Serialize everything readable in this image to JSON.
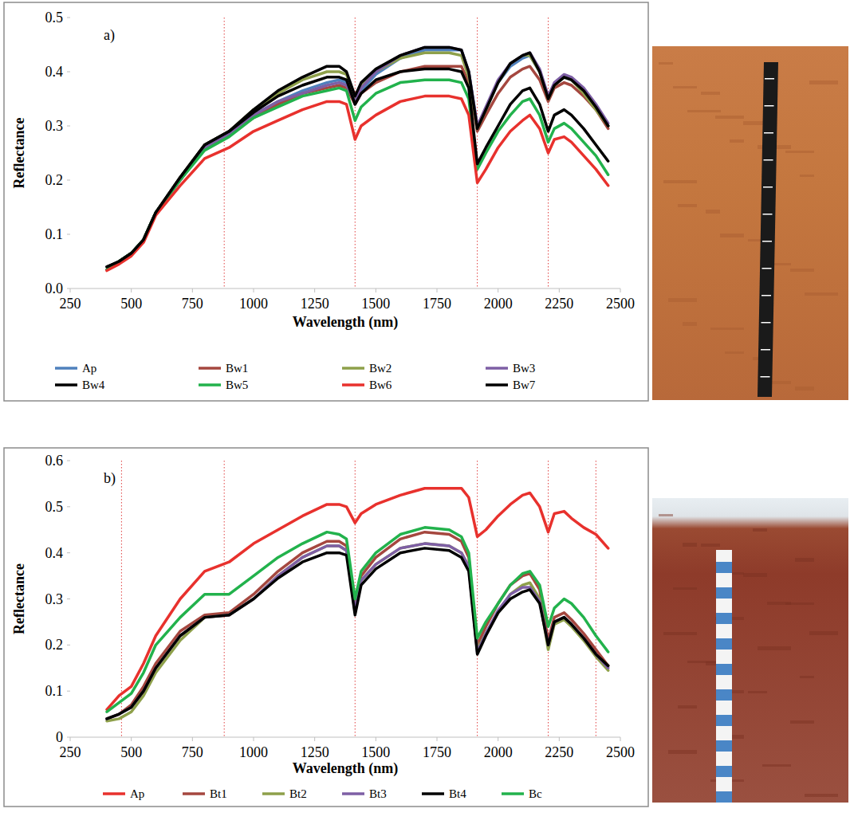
{
  "chart_data": [
    {
      "type": "line",
      "title": "a)",
      "x_label": "Wavelength (nm)",
      "y_label": "Reflectance",
      "x": [
        400,
        450,
        500,
        550,
        600,
        700,
        800,
        900,
        1000,
        1100,
        1200,
        1300,
        1350,
        1380,
        1415,
        1440,
        1500,
        1600,
        1700,
        1800,
        1850,
        1880,
        1915,
        1950,
        2000,
        2050,
        2100,
        2130,
        2170,
        2205,
        2230,
        2270,
        2300,
        2350,
        2400,
        2450
      ],
      "series": [
        {
          "name": "Ap",
          "color": "#4f81bd",
          "values": [
            0.035,
            0.05,
            0.065,
            0.09,
            0.14,
            0.2,
            0.26,
            0.285,
            0.32,
            0.345,
            0.365,
            0.38,
            0.385,
            0.38,
            0.34,
            0.365,
            0.395,
            0.425,
            0.44,
            0.44,
            0.44,
            0.4,
            0.3,
            0.33,
            0.38,
            0.41,
            0.425,
            0.43,
            0.4,
            0.35,
            0.375,
            0.39,
            0.385,
            0.365,
            0.335,
            0.3
          ]
        },
        {
          "name": "Bw1",
          "color": "#a5473f",
          "values": [
            0.035,
            0.05,
            0.065,
            0.09,
            0.14,
            0.2,
            0.26,
            0.285,
            0.315,
            0.34,
            0.36,
            0.37,
            0.375,
            0.37,
            0.34,
            0.36,
            0.38,
            0.4,
            0.41,
            0.41,
            0.41,
            0.38,
            0.29,
            0.32,
            0.36,
            0.39,
            0.405,
            0.41,
            0.385,
            0.345,
            0.37,
            0.38,
            0.375,
            0.355,
            0.33,
            0.295
          ]
        },
        {
          "name": "Bw2",
          "color": "#8ea04a",
          "values": [
            0.035,
            0.05,
            0.065,
            0.09,
            0.14,
            0.205,
            0.265,
            0.29,
            0.33,
            0.36,
            0.385,
            0.4,
            0.4,
            0.395,
            0.35,
            0.375,
            0.4,
            0.425,
            0.435,
            0.435,
            0.43,
            0.39,
            0.295,
            0.33,
            0.38,
            0.415,
            0.43,
            0.43,
            0.4,
            0.35,
            0.375,
            0.39,
            0.385,
            0.36,
            0.33,
            0.3
          ]
        },
        {
          "name": "Bw3",
          "color": "#7e5fa5",
          "values": [
            0.035,
            0.05,
            0.065,
            0.09,
            0.14,
            0.2,
            0.26,
            0.285,
            0.32,
            0.345,
            0.36,
            0.375,
            0.38,
            0.375,
            0.345,
            0.37,
            0.4,
            0.43,
            0.445,
            0.445,
            0.44,
            0.4,
            0.3,
            0.335,
            0.385,
            0.415,
            0.43,
            0.435,
            0.405,
            0.355,
            0.38,
            0.395,
            0.39,
            0.37,
            0.34,
            0.305
          ]
        },
        {
          "name": "Bw4",
          "color": "#000000",
          "values": [
            0.04,
            0.05,
            0.065,
            0.09,
            0.14,
            0.205,
            0.265,
            0.29,
            0.33,
            0.365,
            0.39,
            0.41,
            0.41,
            0.4,
            0.355,
            0.38,
            0.405,
            0.43,
            0.445,
            0.445,
            0.44,
            0.4,
            0.295,
            0.33,
            0.38,
            0.415,
            0.43,
            0.435,
            0.4,
            0.35,
            0.375,
            0.39,
            0.385,
            0.365,
            0.335,
            0.3
          ]
        },
        {
          "name": "Bw5",
          "color": "#22b24c",
          "values": [
            0.035,
            0.05,
            0.065,
            0.09,
            0.14,
            0.2,
            0.255,
            0.28,
            0.315,
            0.335,
            0.355,
            0.365,
            0.37,
            0.365,
            0.31,
            0.335,
            0.36,
            0.38,
            0.385,
            0.385,
            0.38,
            0.35,
            0.22,
            0.25,
            0.29,
            0.32,
            0.345,
            0.35,
            0.32,
            0.27,
            0.295,
            0.305,
            0.295,
            0.27,
            0.245,
            0.21
          ]
        },
        {
          "name": "Bw6",
          "color": "#e8312d",
          "values": [
            0.033,
            0.045,
            0.06,
            0.085,
            0.135,
            0.19,
            0.24,
            0.26,
            0.29,
            0.31,
            0.33,
            0.345,
            0.345,
            0.34,
            0.275,
            0.3,
            0.32,
            0.345,
            0.355,
            0.355,
            0.35,
            0.32,
            0.195,
            0.22,
            0.26,
            0.29,
            0.31,
            0.32,
            0.295,
            0.25,
            0.275,
            0.28,
            0.27,
            0.245,
            0.22,
            0.19
          ]
        },
        {
          "name": "Bw7",
          "color": "#000000",
          "values": [
            0.04,
            0.05,
            0.065,
            0.09,
            0.14,
            0.205,
            0.265,
            0.29,
            0.325,
            0.355,
            0.375,
            0.39,
            0.39,
            0.385,
            0.34,
            0.36,
            0.385,
            0.4,
            0.405,
            0.405,
            0.4,
            0.37,
            0.23,
            0.26,
            0.3,
            0.34,
            0.365,
            0.37,
            0.34,
            0.29,
            0.32,
            0.33,
            0.32,
            0.295,
            0.265,
            0.235
          ]
        }
      ],
      "xlim": [
        250,
        2500
      ],
      "xticks": [
        250,
        500,
        750,
        1000,
        1250,
        1500,
        1750,
        2000,
        2250,
        2500
      ],
      "ylim": [
        0,
        0.5
      ],
      "yticks": [
        {
          "value": 0,
          "label": "0.0"
        },
        0.1,
        0.2,
        0.3,
        0.4,
        0.5
      ],
      "reference_lines": [
        880,
        1415,
        1915,
        2205
      ],
      "grid": false,
      "legend": "bottom"
    },
    {
      "type": "line",
      "title": "b)",
      "x_label": "Wavelength (nm)",
      "y_label": "Reflectance",
      "x": [
        400,
        450,
        500,
        550,
        600,
        700,
        800,
        900,
        1000,
        1100,
        1200,
        1300,
        1350,
        1380,
        1415,
        1440,
        1500,
        1600,
        1700,
        1800,
        1850,
        1880,
        1915,
        1950,
        2000,
        2050,
        2100,
        2130,
        2170,
        2205,
        2230,
        2270,
        2300,
        2350,
        2400,
        2450
      ],
      "series": [
        {
          "name": "Ap",
          "color": "#e8312d",
          "values": [
            0.06,
            0.09,
            0.11,
            0.16,
            0.22,
            0.3,
            0.36,
            0.38,
            0.42,
            0.45,
            0.48,
            0.505,
            0.505,
            0.5,
            0.465,
            0.485,
            0.505,
            0.525,
            0.54,
            0.54,
            0.54,
            0.52,
            0.435,
            0.45,
            0.48,
            0.505,
            0.525,
            0.53,
            0.5,
            0.445,
            0.485,
            0.49,
            0.475,
            0.455,
            0.44,
            0.41
          ]
        },
        {
          "name": "Bt1",
          "color": "#a5473f",
          "values": [
            0.04,
            0.05,
            0.07,
            0.11,
            0.16,
            0.23,
            0.265,
            0.27,
            0.31,
            0.36,
            0.4,
            0.425,
            0.425,
            0.415,
            0.28,
            0.35,
            0.39,
            0.43,
            0.445,
            0.44,
            0.425,
            0.39,
            0.2,
            0.24,
            0.29,
            0.33,
            0.35,
            0.355,
            0.32,
            0.21,
            0.26,
            0.27,
            0.255,
            0.225,
            0.19,
            0.155
          ]
        },
        {
          "name": "Bt2",
          "color": "#8ea04a",
          "values": [
            0.035,
            0.04,
            0.055,
            0.09,
            0.14,
            0.21,
            0.26,
            0.265,
            0.3,
            0.35,
            0.39,
            0.415,
            0.415,
            0.405,
            0.27,
            0.34,
            0.375,
            0.41,
            0.42,
            0.415,
            0.4,
            0.37,
            0.19,
            0.225,
            0.27,
            0.31,
            0.33,
            0.335,
            0.3,
            0.19,
            0.245,
            0.255,
            0.24,
            0.21,
            0.175,
            0.145
          ]
        },
        {
          "name": "Bt3",
          "color": "#7e5fa5",
          "values": [
            0.04,
            0.05,
            0.065,
            0.1,
            0.15,
            0.22,
            0.26,
            0.265,
            0.3,
            0.35,
            0.39,
            0.415,
            0.415,
            0.405,
            0.275,
            0.34,
            0.375,
            0.41,
            0.42,
            0.415,
            0.4,
            0.37,
            0.185,
            0.225,
            0.275,
            0.31,
            0.325,
            0.325,
            0.295,
            0.2,
            0.25,
            0.26,
            0.245,
            0.215,
            0.18,
            0.15
          ]
        },
        {
          "name": "Bt4",
          "color": "#000000",
          "values": [
            0.04,
            0.05,
            0.065,
            0.1,
            0.15,
            0.22,
            0.26,
            0.265,
            0.3,
            0.345,
            0.38,
            0.4,
            0.4,
            0.395,
            0.265,
            0.33,
            0.365,
            0.4,
            0.41,
            0.405,
            0.39,
            0.36,
            0.18,
            0.22,
            0.27,
            0.3,
            0.315,
            0.32,
            0.29,
            0.2,
            0.25,
            0.26,
            0.245,
            0.215,
            0.18,
            0.155
          ]
        },
        {
          "name": "Bc",
          "color": "#22b24c",
          "values": [
            0.055,
            0.075,
            0.095,
            0.14,
            0.2,
            0.26,
            0.31,
            0.31,
            0.35,
            0.39,
            0.42,
            0.445,
            0.44,
            0.43,
            0.3,
            0.36,
            0.4,
            0.44,
            0.455,
            0.45,
            0.435,
            0.4,
            0.215,
            0.25,
            0.29,
            0.33,
            0.355,
            0.36,
            0.33,
            0.24,
            0.28,
            0.3,
            0.29,
            0.26,
            0.22,
            0.185
          ]
        }
      ],
      "xlim": [
        250,
        2500
      ],
      "xticks": [
        250,
        500,
        750,
        1000,
        1250,
        1500,
        1750,
        2000,
        2250,
        2500
      ],
      "ylim": [
        0,
        0.6
      ],
      "yticks": [
        0,
        0.1,
        0.2,
        0.3,
        0.4,
        0.5,
        0.6
      ],
      "reference_lines": [
        460,
        880,
        1415,
        1915,
        2205,
        2400
      ],
      "grid": false,
      "legend": "bottom"
    }
  ]
}
